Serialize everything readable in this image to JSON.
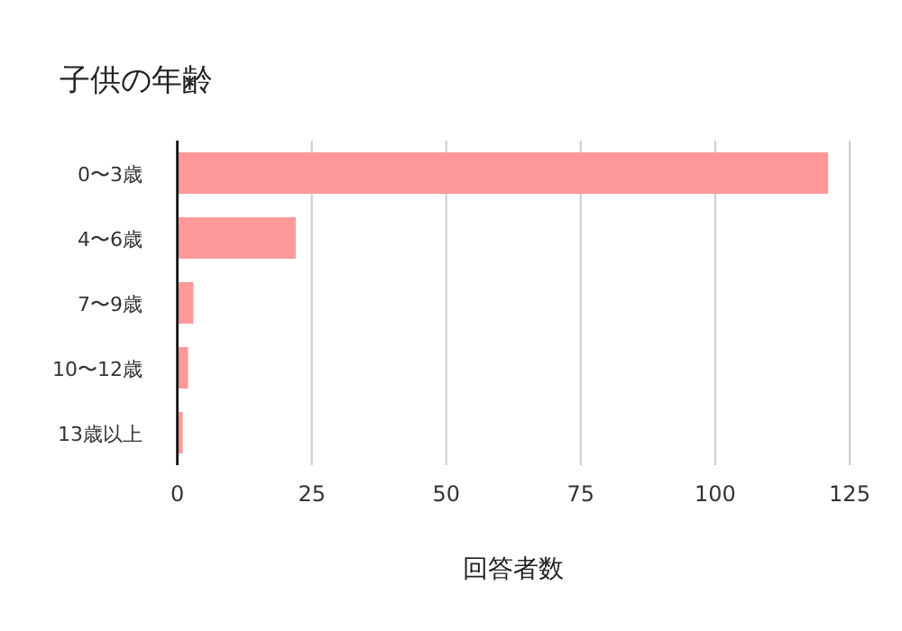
{
  "chart_data": {
    "type": "bar",
    "orientation": "horizontal",
    "title": "子供の年齢",
    "xlabel": "回答者数",
    "categories": [
      "0〜3歳",
      "4〜6歳",
      "7〜9歳",
      "10〜12歳",
      "13歳以上"
    ],
    "values": [
      121,
      22,
      3,
      2,
      1
    ],
    "color": "#ff9999",
    "xlim": [
      0,
      125
    ],
    "xticks": [
      0,
      25,
      50,
      75,
      100,
      125
    ],
    "grid": "x"
  }
}
